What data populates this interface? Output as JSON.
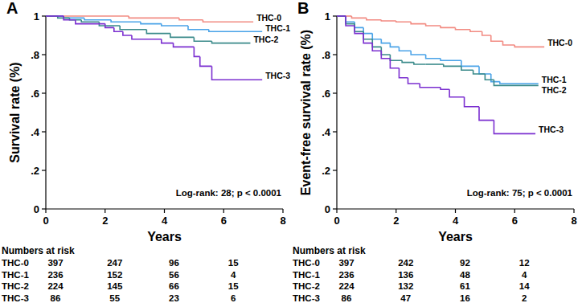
{
  "chart_data": [
    {
      "type": "line",
      "line_style": "step",
      "panel_label": "A",
      "y_label": "Survival rate (%)",
      "x_label": "Years",
      "annotation": "Log-rank: 28; p < 0.0001",
      "xlim": [
        0,
        8
      ],
      "xticks": [
        0,
        2,
        4,
        6,
        8
      ],
      "ylim": [
        0,
        1
      ],
      "yticks": [
        0,
        {
          "value": 0.2,
          "label": ".2"
        },
        {
          "value": 0.4,
          "label": ".4"
        },
        {
          "value": 0.6,
          "label": ".6"
        },
        {
          "value": 0.8,
          "label": ".8"
        },
        1
      ],
      "grid": false,
      "series": [
        {
          "name": "THC-0",
          "color": "#f28b82",
          "x": [
            0,
            2.8,
            4.5,
            5.3,
            7.0
          ],
          "values": [
            1,
            0.99,
            0.98,
            0.97,
            0.97
          ]
        },
        {
          "name": "THC-1",
          "color": "#4aa3e8",
          "x": [
            0,
            0.6,
            1.3,
            2.2,
            3.2,
            3.9,
            4.8,
            5.5,
            7.3
          ],
          "values": [
            1,
            0.99,
            0.98,
            0.97,
            0.96,
            0.95,
            0.93,
            0.92,
            0.92
          ]
        },
        {
          "name": "THC-2",
          "color": "#3a8a8a",
          "x": [
            0,
            0.4,
            0.8,
            1.2,
            1.8,
            2.5,
            3.4,
            4.2,
            5.0,
            5.6,
            6.9
          ],
          "values": [
            1,
            0.99,
            0.98,
            0.97,
            0.95,
            0.93,
            0.91,
            0.89,
            0.87,
            0.86,
            0.86
          ]
        },
        {
          "name": "THC-3",
          "color": "#7b2fd0",
          "x": [
            0,
            0.6,
            1.0,
            2.0,
            2.3,
            2.6,
            2.9,
            3.9,
            4.3,
            5.0,
            5.2,
            5.6,
            7.3
          ],
          "values": [
            1,
            0.98,
            0.96,
            0.94,
            0.92,
            0.9,
            0.88,
            0.86,
            0.84,
            0.79,
            0.74,
            0.67,
            0.67
          ]
        }
      ],
      "numbers_at_risk": {
        "title": "Numbers at risk",
        "x": [
          0,
          2,
          4,
          6
        ],
        "rows": [
          {
            "name": "THC-0",
            "values": [
              397,
              247,
              96,
              15
            ]
          },
          {
            "name": "THC-1",
            "values": [
              236,
              152,
              56,
              4
            ]
          },
          {
            "name": "THC-2",
            "values": [
              224,
              145,
              66,
              15
            ]
          },
          {
            "name": "THC-3",
            "values": [
              86,
              55,
              23,
              6
            ]
          }
        ]
      }
    },
    {
      "type": "line",
      "line_style": "step",
      "panel_label": "B",
      "y_label": "Event-free survival rate (%)",
      "x_label": "Years",
      "annotation": "Log-rank: 75; p < 0.0001",
      "xlim": [
        0,
        8
      ],
      "xticks": [
        0,
        2,
        4,
        6,
        8
      ],
      "ylim": [
        0,
        1
      ],
      "yticks": [
        0,
        {
          "value": 0.2,
          "label": ".2"
        },
        {
          "value": 0.4,
          "label": ".4"
        },
        {
          "value": 0.6,
          "label": ".6"
        },
        {
          "value": 0.8,
          "label": ".8"
        },
        1
      ],
      "grid": false,
      "series": [
        {
          "name": "THC-0",
          "color": "#f28b82",
          "x": [
            0,
            0.5,
            1.0,
            1.5,
            2.0,
            2.5,
            3.0,
            3.5,
            4.0,
            4.5,
            4.9,
            5.2,
            5.6,
            6.0,
            7.0
          ],
          "values": [
            1,
            0.99,
            0.98,
            0.975,
            0.97,
            0.96,
            0.95,
            0.94,
            0.93,
            0.92,
            0.9,
            0.87,
            0.85,
            0.84,
            0.84
          ]
        },
        {
          "name": "THC-1",
          "color": "#4aa3e8",
          "x": [
            0,
            0.3,
            0.6,
            0.9,
            1.2,
            1.5,
            1.8,
            2.1,
            2.5,
            3.0,
            3.5,
            4.2,
            4.8,
            5.2,
            5.5,
            6.8
          ],
          "values": [
            1,
            0.97,
            0.94,
            0.91,
            0.88,
            0.86,
            0.84,
            0.82,
            0.8,
            0.78,
            0.77,
            0.74,
            0.7,
            0.66,
            0.65,
            0.65
          ]
        },
        {
          "name": "THC-2",
          "color": "#3a8a8a",
          "x": [
            0,
            0.3,
            0.6,
            0.9,
            1.2,
            1.5,
            1.8,
            2.2,
            2.6,
            3.0,
            3.6,
            4.2,
            4.6,
            5.0,
            5.3,
            6.8
          ],
          "values": [
            1,
            0.96,
            0.92,
            0.88,
            0.84,
            0.8,
            0.77,
            0.76,
            0.75,
            0.75,
            0.74,
            0.72,
            0.7,
            0.67,
            0.64,
            0.64
          ]
        },
        {
          "name": "THC-3",
          "color": "#7b2fd0",
          "x": [
            0,
            0.3,
            0.6,
            0.9,
            1.2,
            1.5,
            1.8,
            2.1,
            2.4,
            2.8,
            3.5,
            3.8,
            4.3,
            4.8,
            5.3,
            6.7
          ],
          "values": [
            1,
            0.95,
            0.91,
            0.86,
            0.82,
            0.78,
            0.73,
            0.68,
            0.65,
            0.63,
            0.62,
            0.58,
            0.53,
            0.46,
            0.39,
            0.39
          ]
        }
      ],
      "numbers_at_risk": {
        "title": "Numbers at risk",
        "x": [
          0,
          2,
          4,
          6
        ],
        "rows": [
          {
            "name": "THC-0",
            "values": [
              397,
              242,
              92,
              12
            ]
          },
          {
            "name": "THC-1",
            "values": [
              236,
              136,
              48,
              4
            ]
          },
          {
            "name": "THC-2",
            "values": [
              224,
              132,
              61,
              14
            ]
          },
          {
            "name": "THC-3",
            "values": [
              86,
              47,
              16,
              2
            ]
          }
        ]
      }
    }
  ]
}
